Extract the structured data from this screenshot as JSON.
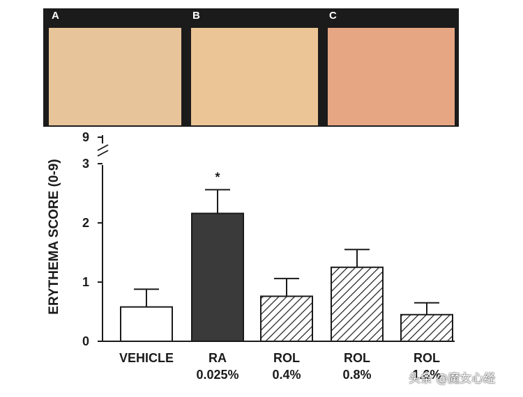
{
  "panels": [
    {
      "label": "A",
      "color": "#e8c49a"
    },
    {
      "label": "B",
      "color": "#ebc595"
    },
    {
      "label": "C",
      "color": "#e6a684"
    }
  ],
  "watermark": "头条 @魔女心经",
  "chart_data": {
    "type": "bar",
    "ylabel": "ERYTHEMA SCORE (0-9)",
    "y_ticks": [
      "0",
      "1",
      "2",
      "3",
      "9"
    ],
    "ylim": [
      0,
      3
    ],
    "axis_break": true,
    "categories": [
      {
        "line1": "VEHICLE",
        "line2": ""
      },
      {
        "line1": "RA",
        "line2": "0.025%"
      },
      {
        "line1": "ROL",
        "line2": "0.4%"
      },
      {
        "line1": "ROL",
        "line2": "0.8%"
      },
      {
        "line1": "ROL",
        "line2": "1.6%"
      }
    ],
    "values": [
      0.58,
      2.16,
      0.76,
      1.25,
      0.45
    ],
    "errors": [
      0.3,
      0.4,
      0.3,
      0.3,
      0.2
    ],
    "fills": [
      "white",
      "dark",
      "hatched",
      "hatched",
      "hatched"
    ],
    "annotations": [
      {
        "category_index": 1,
        "text": "*"
      }
    ],
    "colors": {
      "dark": "#3a3a3a",
      "outline": "#1a1a1a"
    }
  }
}
